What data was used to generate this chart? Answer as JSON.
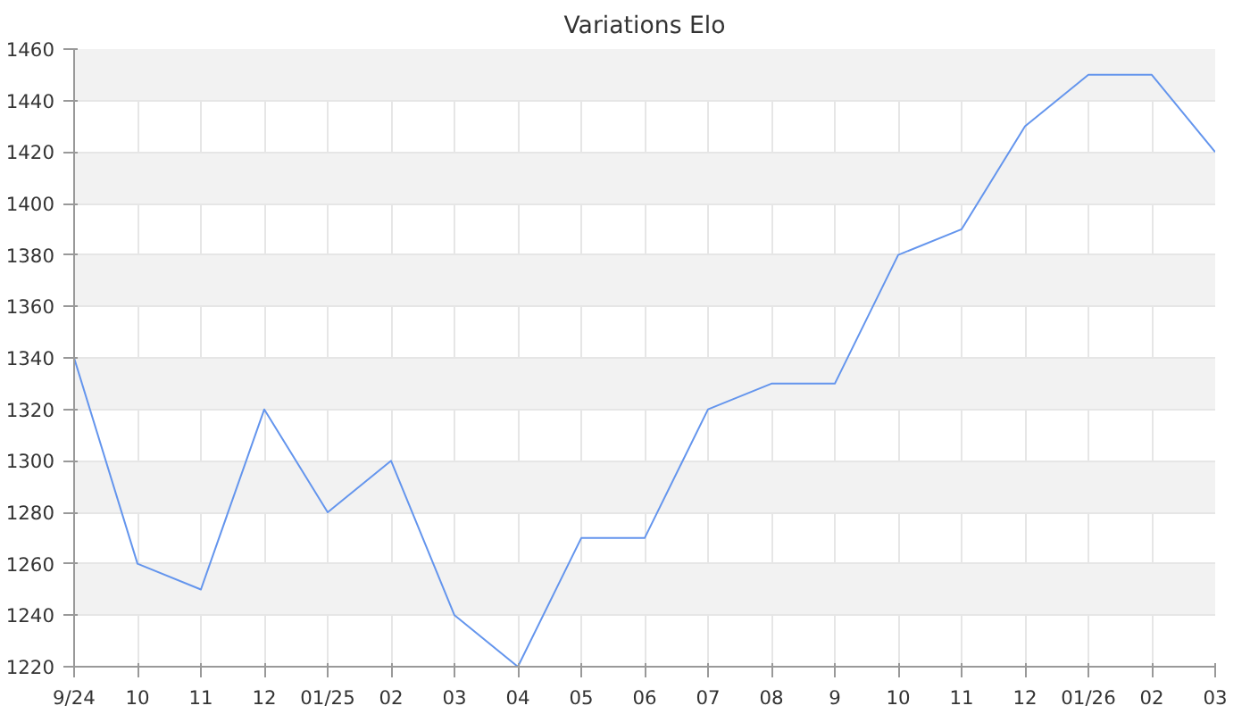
{
  "chart_data": {
    "type": "line",
    "title": "Variations Elo",
    "categories": [
      "9/24",
      "10",
      "11",
      "12",
      "01/25",
      "02",
      "03",
      "04",
      "05",
      "06",
      "07",
      "08",
      "9",
      "10",
      "11",
      "12",
      "01/26",
      "02",
      "03"
    ],
    "series": [
      {
        "color": "#6495ed",
        "values": [
          1340,
          1260,
          1250,
          1320,
          1280,
          1300,
          1240,
          1220,
          1270,
          1270,
          1320,
          1330,
          1330,
          1380,
          1390,
          1430,
          1450,
          1450,
          1420
        ]
      }
    ],
    "ylim": [
      1220,
      1460
    ],
    "yticks": [
      1220,
      1240,
      1260,
      1280,
      1300,
      1320,
      1340,
      1360,
      1380,
      1400,
      1420,
      1440,
      1460
    ],
    "grid": true,
    "marker": "none",
    "line_style": "solid"
  }
}
